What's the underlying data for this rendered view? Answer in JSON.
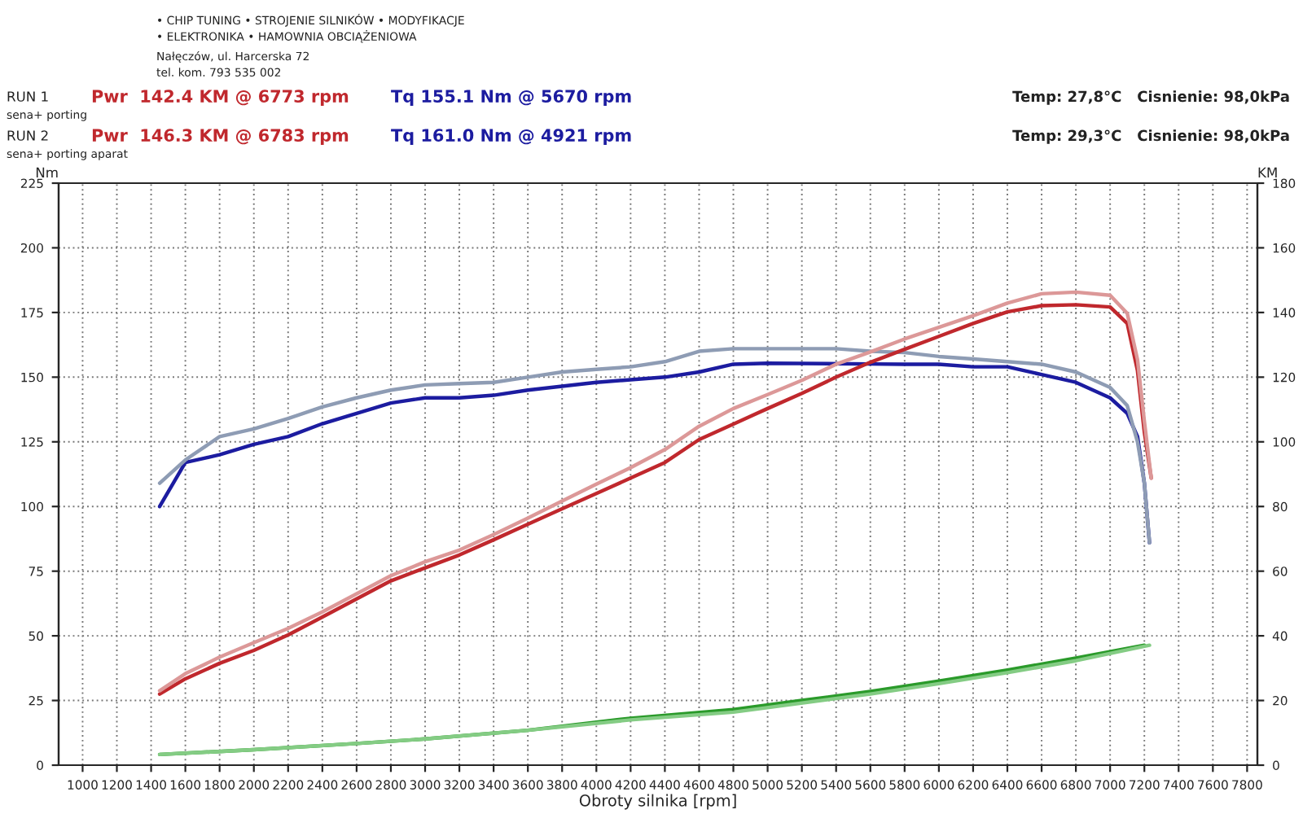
{
  "chart_data": {
    "type": "line",
    "xlabel": "Obroty silnika [rpm]",
    "ylabel": "Nm",
    "y2label": "KM",
    "xlim": [
      860,
      7860
    ],
    "xticks": [
      1000,
      1200,
      1400,
      1600,
      1800,
      2000,
      2200,
      2400,
      2600,
      2800,
      3000,
      3200,
      3400,
      3600,
      3800,
      4000,
      4200,
      4400,
      4600,
      4800,
      5000,
      5200,
      5400,
      5600,
      5800,
      6000,
      6200,
      6400,
      6600,
      6800,
      7000,
      7200,
      7400,
      7600,
      7800
    ],
    "ylim": [
      0,
      225
    ],
    "yticks": [
      0,
      25,
      50,
      75,
      100,
      125,
      150,
      175,
      200,
      225
    ],
    "y2lim": [
      0,
      180
    ],
    "y2ticks": [
      0,
      20,
      40,
      60,
      80,
      100,
      120,
      140,
      160,
      180
    ],
    "grid": true,
    "line_style": "solid",
    "marker": "none",
    "annotations": [
      "• CHIP TUNING • STROJENIE SILNIKÓW • MODYFIKACJE",
      "• ELEKTRONIKA • HAMOWNIA OBCIĄŻENIOWA",
      "Nałęczów, ul. Harcerska 72",
      "tel. kom. 793 535 002",
      "RUN 1",
      "Pwr  142.4 KM @ 6773 rpm",
      "Tq 155.1 Nm @ 5670 rpm",
      "sena+ porting",
      "RUN 2",
      "Pwr  146.3 KM @ 6783 rpm",
      "Tq 161.0 Nm @ 4921 rpm",
      "sena+ porting aparat",
      "Temp: 27,8°C   Cisnienie: 98,0kPa",
      "Temp: 29,3°C   Cisnienie: 98,0kPa"
    ],
    "series": [
      {
        "color": "#1c1ca0",
        "x": [
          1450,
          1600,
          1800,
          2000,
          2200,
          2400,
          2600,
          2800,
          3000,
          3200,
          3400,
          3600,
          3800,
          4000,
          4200,
          4400,
          4600,
          4800,
          5000,
          5600,
          5800,
          6000,
          6200,
          6400,
          6600,
          6800,
          7000,
          7100,
          7160,
          7200,
          7230
        ],
        "values": [
          100,
          117,
          120,
          124,
          127,
          132,
          136,
          140,
          142,
          142,
          143,
          145,
          146.5,
          148,
          149,
          150,
          152,
          155,
          155.4,
          155.1,
          155,
          155,
          154,
          154,
          151,
          148,
          142,
          136,
          127,
          109,
          86
        ]
      },
      {
        "color": "#8e9cb4",
        "x": [
          1450,
          1600,
          1800,
          2000,
          2200,
          2400,
          2600,
          2800,
          3000,
          3200,
          3400,
          3600,
          3800,
          4000,
          4200,
          4400,
          4600,
          4800,
          5000,
          5400,
          5600,
          5800,
          6000,
          6200,
          6400,
          6600,
          6800,
          7000,
          7100,
          7160,
          7200,
          7230
        ],
        "values": [
          109,
          118,
          127,
          130,
          134,
          138.5,
          142,
          145,
          147,
          147.5,
          148,
          150,
          152,
          153,
          154,
          156,
          160,
          161,
          161,
          161,
          160,
          159.5,
          158,
          157,
          156,
          155,
          152,
          146,
          139,
          125,
          109,
          86
        ]
      },
      {
        "color": "#c0282d",
        "axis": "y2",
        "x": [
          1450,
          1600,
          1800,
          2000,
          2200,
          2400,
          2600,
          2800,
          3000,
          3200,
          3400,
          3600,
          3800,
          4000,
          4200,
          4400,
          4600,
          4800,
          5000,
          5200,
          5400,
          5600,
          5800,
          6000,
          6200,
          6400,
          6600,
          6800,
          7000,
          7100,
          7160,
          7200,
          7240
        ],
        "values": [
          22,
          26.7,
          31.5,
          35.5,
          40.3,
          45.8,
          51.4,
          57,
          61,
          65,
          69.7,
          74.5,
          79.3,
          84,
          88.8,
          93.6,
          100.7,
          105.5,
          110.3,
          115,
          120,
          124.6,
          128.6,
          132.6,
          136.6,
          140.2,
          142.1,
          142.4,
          141.7,
          136.6,
          122,
          103,
          88.8
        ]
      },
      {
        "color": "#dc9898",
        "axis": "y2",
        "x": [
          1450,
          1600,
          1800,
          2000,
          2200,
          2400,
          2600,
          2800,
          3000,
          3200,
          3400,
          3600,
          3800,
          4000,
          4200,
          4400,
          4600,
          4800,
          5000,
          5200,
          5400,
          5600,
          5800,
          6000,
          6200,
          6400,
          6600,
          6800,
          7000,
          7100,
          7160,
          7200,
          7240
        ],
        "values": [
          23,
          28.3,
          33.4,
          37.9,
          42.3,
          47.4,
          53,
          58.6,
          62.9,
          66.5,
          71.3,
          76.4,
          81.7,
          86.9,
          92,
          97.6,
          104.8,
          110.3,
          114.6,
          119,
          124,
          127.8,
          131.8,
          135.4,
          139,
          142.9,
          145.8,
          146.3,
          145.3,
          139.7,
          125.4,
          106.3,
          88.8
        ]
      },
      {
        "color": "#2a9a2a",
        "axis": "y2",
        "x": [
          1450,
          2000,
          2600,
          3000,
          3600,
          4200,
          4800,
          5200,
          5600,
          6000,
          6400,
          6800,
          7200
        ],
        "values": [
          3.3,
          4.8,
          6.7,
          8.1,
          10.8,
          14.5,
          17.2,
          20,
          22.8,
          26,
          29.4,
          33.1,
          37.1
        ]
      },
      {
        "color": "#84cc84",
        "axis": "y2",
        "x": [
          1450,
          2000,
          2600,
          3000,
          3600,
          4200,
          4800,
          5600,
          6000,
          6400,
          6800,
          7230
        ],
        "values": [
          3.3,
          4.8,
          6.7,
          8.1,
          10.8,
          14,
          16.4,
          22,
          25.2,
          28.6,
          32.3,
          37.1
        ]
      }
    ]
  }
}
